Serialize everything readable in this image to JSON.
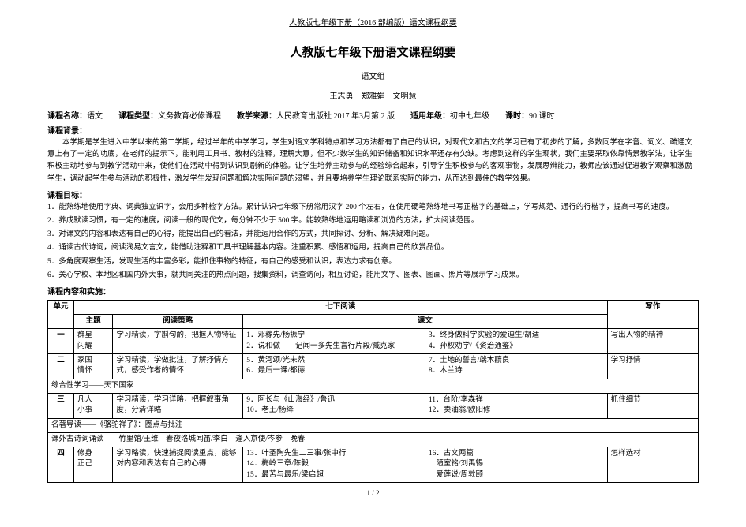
{
  "header": "人教版七年级下册（2016 部编版）语文课程纲要",
  "title": "人教版七年级下册语文课程纲要",
  "subtitle": "语文组",
  "authors": "王志勇　郑雅娟　文明慧",
  "meta": {
    "course_label": "课程名称：",
    "course": "语文",
    "type_label": "课程类型：",
    "type": "义务教育必修课程",
    "source_label": "教学来源：",
    "source": "人民教育出版社 2017 年3月第 2 版",
    "grade_label": "适用年级：",
    "grade": "初中七年级",
    "hours_label": "课时：",
    "hours": "90 课时"
  },
  "background_heading": "课程背景：",
  "background_text": "本学期是学生进入中学以来的第二学期，经过半年的中学学习，学生对语文学科特点和学习方法都有了自己的认识，对现代文和古文的学习已有了初步的了解，多数同学在字音、词义、疏通文意上有了一定的功底，在老师的提示下，能利用工具书、教材的注释，理解大意，但不少数学生的知识储备和知识水平还存有欠缺。考虑到这样的学生现状，我们主要采取依靠情景教学法，让学生积极主动地参与到教学活动中来，使他们在活动中得到认识到剧新的体验。让学生培养主动参与的经验综合起来，引导学生积极参与的客观事物，发展思辨能力，教师应该通过促进教学观察和激励学生，调动起学生参与活动的积极性，激发学生发现问题和解决实际问题的渴望，并且要培养学生理论联系实际的能力，从而达到最佳的教学效果。",
  "objective_heading": "课程目标：",
  "objectives": [
    "1．能熟练地使用字典、词典独立识字，会用多种检字方法。累计认识七年级下册常用汉字 200 个左右，在使用硬笔熟练地书写正楷字的基础上，学写规范、通行的行楷字，提高书写的速度。",
    "2．养成默读习惯，有一定的速度，阅读一般的现代文，每分钟不少于 500 字。能较熟练地运用略读和浏览的方法，扩大阅读范围。",
    "3．对课文的内容和表达有自己的心得，能提出自己的看法，并能运用合作的方式，共同探讨、分析、解决疑难问题。",
    "4．诵读古代诗词，阅读浅易文言文，能借助注释和工具书理解基本内容。注重积累、感悟和运用，提高自己的欣赏品位。",
    "5．多角度观察生活，发现生活的丰富多彩，能抓住事物的特征，有自己的感受和认识，表达力求有创意。",
    "6．关心学校、本地区和国内外大事，就共同关注的热点问题，搜集资料，调查访问，相互讨论，能用文字、图表、图画、照片等展示学习成果。"
  ],
  "content_heading": "课程内容和实施：",
  "table": {
    "reading_header": "七下阅读",
    "cols": [
      "单元",
      "主题",
      "阅读策略",
      "课文",
      "",
      "写作"
    ],
    "rows": [
      {
        "unit": "一",
        "topic": "群星\n闪耀",
        "strategy": "学习精读，字斟句酌，把握人物特征",
        "t1": "1．邓稼先/杨振宁\n2．说和做——记闻一多先生言行片段/臧克家",
        "t2": "3．终身做科学实验的爱迪生/胡适\n4．孙权劝学/《资治通鉴》",
        "writing": "写出人物的精神"
      },
      {
        "unit": "二",
        "topic": "家国\n情怀",
        "strategy": "学习精读，学做批注，了解抒情方式，感受作者的情怀",
        "t1": "5．黄河颂/光未然\n6．最后一课/都德",
        "t2": "7．土地的誓言/端木蕻良\n8．木兰诗",
        "writing": "学习抒情"
      },
      {
        "span": "综合性学习——天下国家"
      },
      {
        "unit": "三",
        "topic": "凡人\n小事",
        "strategy": "学习精读，学习详略，把握叙事角度，分清详略",
        "t1": "9．阿长与《山海经》/鲁迅\n10．老王/杨绛",
        "t2": "11．台阶/李森祥\n12．卖油翁/欧阳修",
        "writing": "抓住细节"
      },
      {
        "span": "名著导读——《骆驼祥子》：圈点与批注"
      },
      {
        "span": "课外古诗词诵读——竹里馆/王维　春夜洛城闻笛/李白　逢入京使/岑参　晚春"
      },
      {
        "unit": "四",
        "topic": "修身\n正己",
        "strategy": "学习略读，快速捕捉阅读重点，能够对内容和表达有自己的心得",
        "t1": "13．叶圣陶先生二三事/张中行\n14．梅岭三章/陈毅\n15．最苦与最乐/梁启超",
        "t2": "16．古文两篇\n　陋室铭/刘禹锡\n　爱莲说/周敦颐",
        "writing": "怎样选材"
      }
    ]
  },
  "page_num": "1 / 2"
}
